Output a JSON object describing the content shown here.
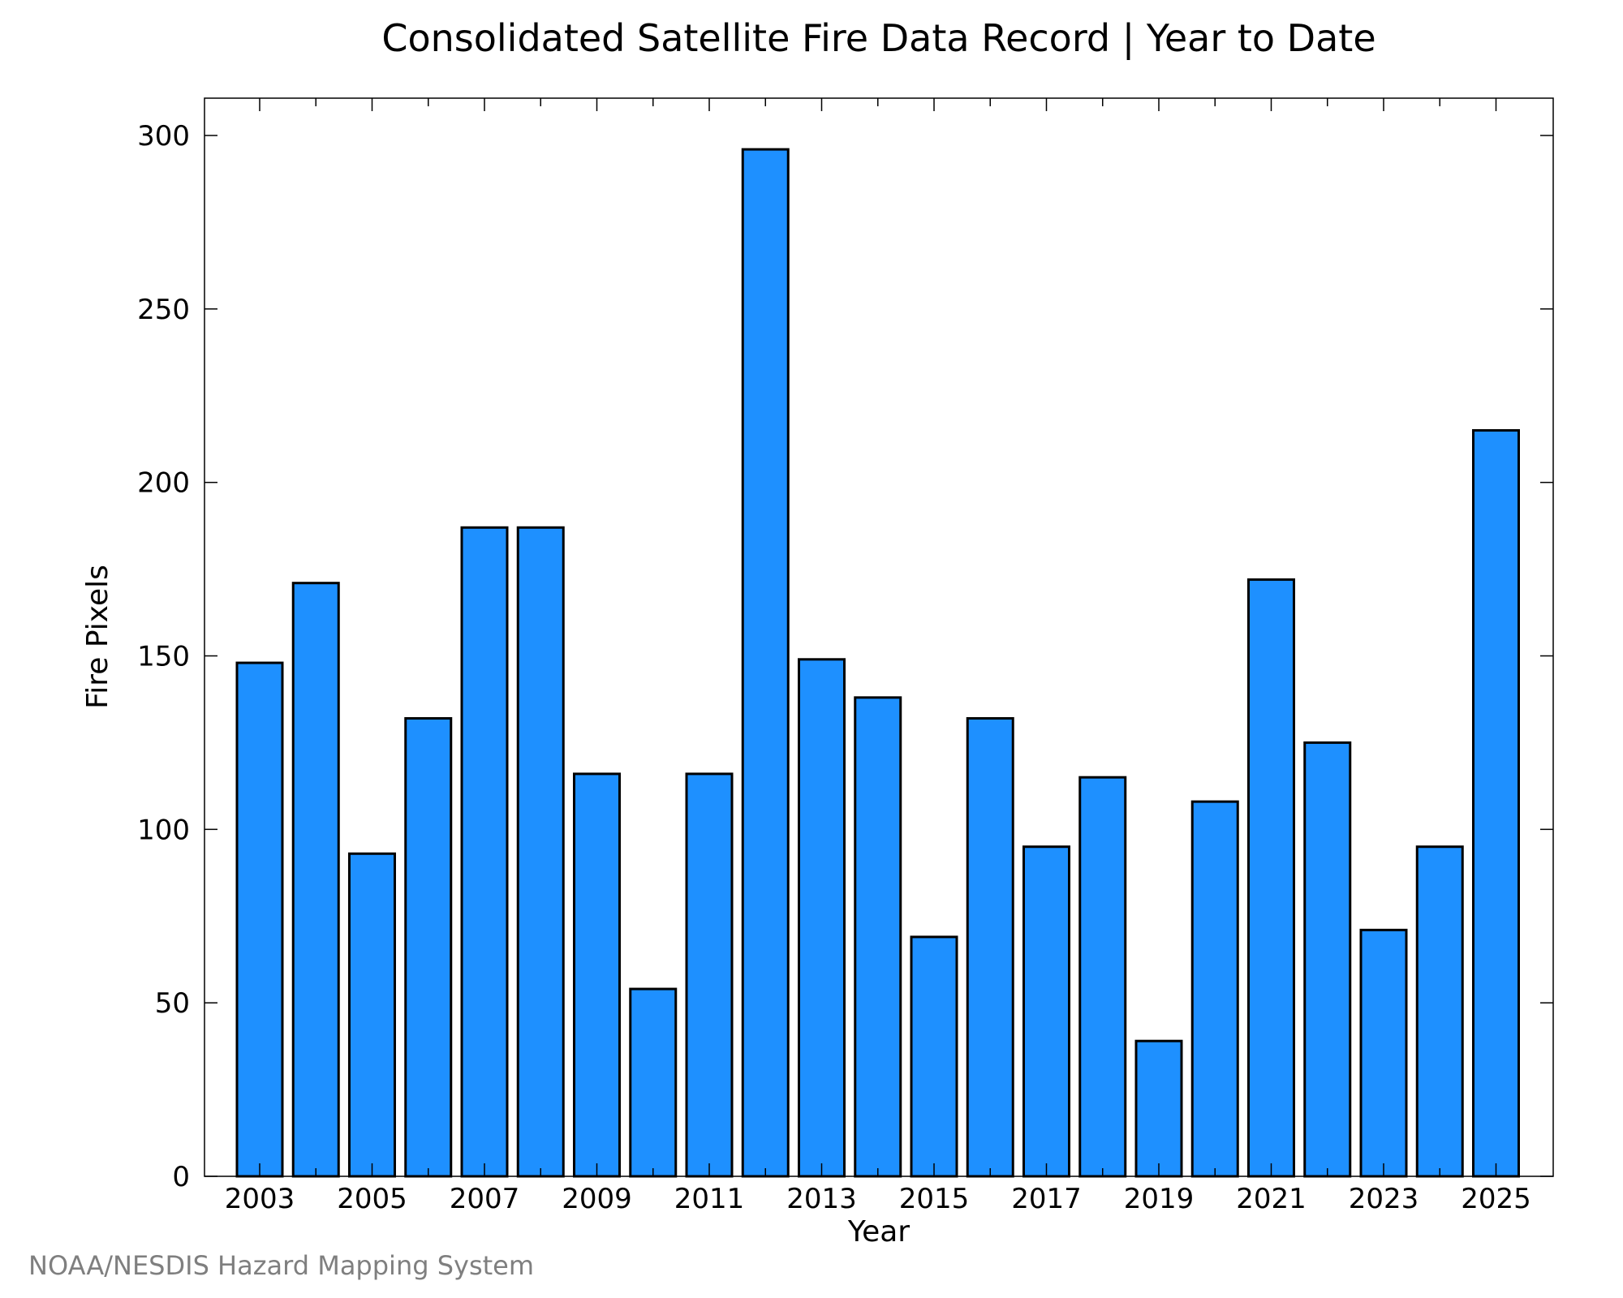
{
  "chart_data": {
    "type": "bar",
    "title": "Consolidated Satellite Fire Data Record | Year to Date",
    "xlabel": "Year",
    "ylabel": "Fire Pixels",
    "ylim": [
      0,
      310
    ],
    "yticks": [
      0,
      50,
      100,
      150,
      200,
      250,
      300
    ],
    "categories": [
      "2003",
      "2004",
      "2005",
      "2006",
      "2007",
      "2008",
      "2009",
      "2010",
      "2011",
      "2012",
      "2013",
      "2014",
      "2015",
      "2016",
      "2017",
      "2018",
      "2019",
      "2020",
      "2021",
      "2022",
      "2023",
      "2024",
      "2025"
    ],
    "x_tick_labels": [
      "2003",
      "2005",
      "2007",
      "2009",
      "2011",
      "2013",
      "2015",
      "2017",
      "2019",
      "2021",
      "2023",
      "2025"
    ],
    "values": [
      148,
      171,
      93,
      132,
      187,
      187,
      116,
      54,
      116,
      296,
      149,
      138,
      69,
      132,
      95,
      115,
      39,
      108,
      172,
      125,
      71,
      95,
      215
    ],
    "bar_color": "#1e90ff",
    "bar_edge_color": "#000000",
    "grid": false,
    "legend": "none"
  },
  "credit": "NOAA/NESDIS Hazard Mapping System"
}
